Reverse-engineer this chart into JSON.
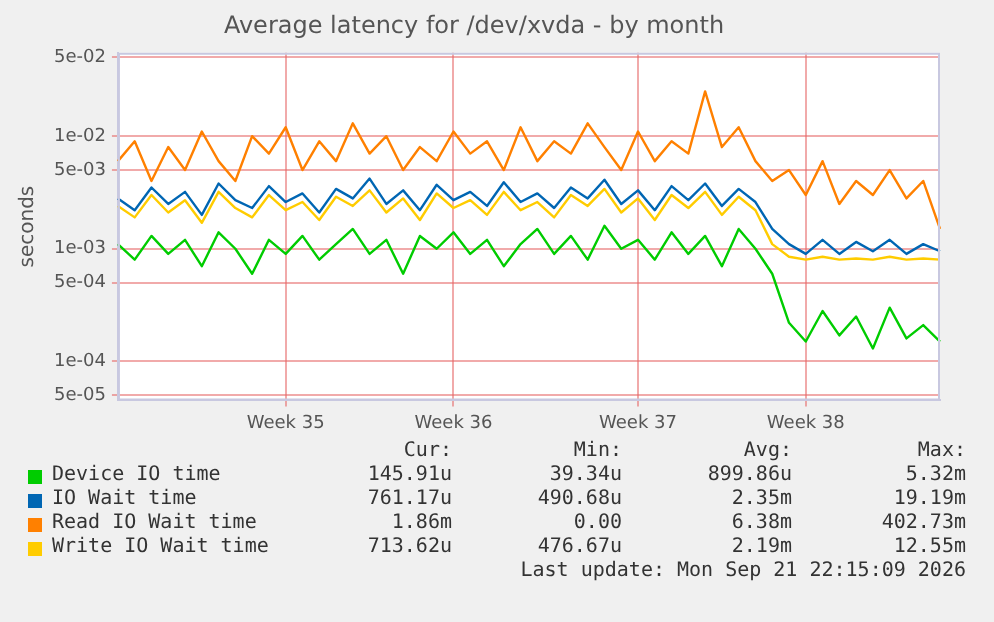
{
  "chart_data": {
    "type": "line",
    "title": "Average latency for /dev/xvda - by month",
    "ylabel": "seconds",
    "log": "y",
    "grid": true,
    "legend": "bottom",
    "marker": "none",
    "line_style": "solid",
    "categories": [
      null,
      null,
      null,
      null,
      null,
      null,
      null,
      null,
      null,
      null,
      "Week 35",
      null,
      null,
      null,
      null,
      null,
      null,
      null,
      null,
      null,
      "Week 36",
      null,
      null,
      null,
      null,
      null,
      null,
      null,
      null,
      null,
      null,
      "Week 37",
      null,
      null,
      null,
      null,
      null,
      null,
      null,
      null,
      null,
      "Week 38",
      null,
      null,
      null,
      null,
      null,
      null,
      null,
      null
    ],
    "ylim": [
      4.5e-05,
      0.055
    ],
    "yticks": [
      {
        "value": 5e-05,
        "label": "5e-05"
      },
      {
        "value": 0.0001,
        "label": "1e-04"
      },
      {
        "value": 0.0005,
        "label": "5e-04"
      },
      {
        "value": 0.001,
        "label": "1e-03"
      },
      {
        "value": 0.005,
        "label": "5e-03"
      },
      {
        "value": 0.01,
        "label": "1e-02"
      },
      {
        "value": 0.05,
        "label": "5e-02"
      }
    ],
    "series": [
      {
        "name": "Device IO time",
        "color": "#00cc00",
        "values": [
          0.0011,
          0.0008,
          0.0013,
          0.0009,
          0.0012,
          0.0007,
          0.0014,
          0.001,
          0.0006,
          0.0012,
          0.0009,
          0.0013,
          0.0008,
          0.0011,
          0.0015,
          0.0009,
          0.0012,
          0.0006,
          0.0013,
          0.001,
          0.0014,
          0.0009,
          0.0012,
          0.0007,
          0.0011,
          0.0015,
          0.0009,
          0.0013,
          0.0008,
          0.0016,
          0.001,
          0.0012,
          0.0008,
          0.0014,
          0.0009,
          0.0013,
          0.0007,
          0.0015,
          0.001,
          0.0006,
          0.00022,
          0.00015,
          0.00028,
          0.00017,
          0.00025,
          0.00013,
          0.0003,
          0.00016,
          0.00021,
          0.00015
        ]
      },
      {
        "name": "IO Wait time",
        "color": "#0066b3",
        "values": [
          0.0028,
          0.0022,
          0.0035,
          0.0025,
          0.0032,
          0.002,
          0.0038,
          0.0027,
          0.0023,
          0.0036,
          0.0026,
          0.0031,
          0.0021,
          0.0034,
          0.0028,
          0.0042,
          0.0025,
          0.0033,
          0.0022,
          0.0037,
          0.0027,
          0.0032,
          0.0024,
          0.0039,
          0.0026,
          0.0031,
          0.0023,
          0.0035,
          0.0028,
          0.0041,
          0.0025,
          0.0033,
          0.0022,
          0.0036,
          0.0027,
          0.0038,
          0.0024,
          0.0034,
          0.0026,
          0.0015,
          0.0011,
          0.0009,
          0.0012,
          0.0009,
          0.00115,
          0.00095,
          0.0012,
          0.0009,
          0.0011,
          0.00095
        ]
      },
      {
        "name": "Read IO Wait time",
        "color": "#ff8000",
        "values": [
          0.006,
          0.009,
          0.004,
          0.008,
          0.005,
          0.011,
          0.006,
          0.004,
          0.01,
          0.007,
          0.012,
          0.005,
          0.009,
          0.006,
          0.013,
          0.007,
          0.01,
          0.005,
          0.008,
          0.006,
          0.011,
          0.007,
          0.009,
          0.005,
          0.012,
          0.006,
          0.009,
          0.007,
          0.013,
          0.008,
          0.005,
          0.011,
          0.006,
          0.009,
          0.007,
          0.025,
          0.008,
          0.012,
          0.006,
          0.004,
          0.005,
          0.003,
          0.006,
          0.0025,
          0.004,
          0.003,
          0.005,
          0.0028,
          0.004,
          0.0015
        ]
      },
      {
        "name": "Write IO Wait time",
        "color": "#ffcc00",
        "values": [
          0.0024,
          0.0019,
          0.003,
          0.0021,
          0.0027,
          0.0017,
          0.0032,
          0.0023,
          0.0019,
          0.003,
          0.0022,
          0.0026,
          0.0018,
          0.0029,
          0.0024,
          0.0033,
          0.0021,
          0.0028,
          0.0018,
          0.0031,
          0.0023,
          0.0027,
          0.002,
          0.0032,
          0.0022,
          0.0026,
          0.0019,
          0.003,
          0.0024,
          0.0034,
          0.0021,
          0.0028,
          0.0018,
          0.003,
          0.0023,
          0.0032,
          0.002,
          0.0029,
          0.0022,
          0.0011,
          0.00085,
          0.0008,
          0.00085,
          0.0008,
          0.00082,
          0.0008,
          0.00085,
          0.0008,
          0.00082,
          0.0008
        ]
      }
    ],
    "annotations": [
      "Cur:",
      "Min:",
      "Avg:",
      "Max:",
      "145.91u",
      "39.34u",
      "899.86u",
      "5.32m",
      "761.17u",
      "490.68u",
      "2.35m",
      "19.19m",
      "1.86m",
      "0.00",
      "6.38m",
      "402.73m",
      "713.62u",
      "476.67u",
      "2.19m",
      "12.55m",
      "Last update: Mon Sep 21 22:15:09 2026"
    ]
  }
}
